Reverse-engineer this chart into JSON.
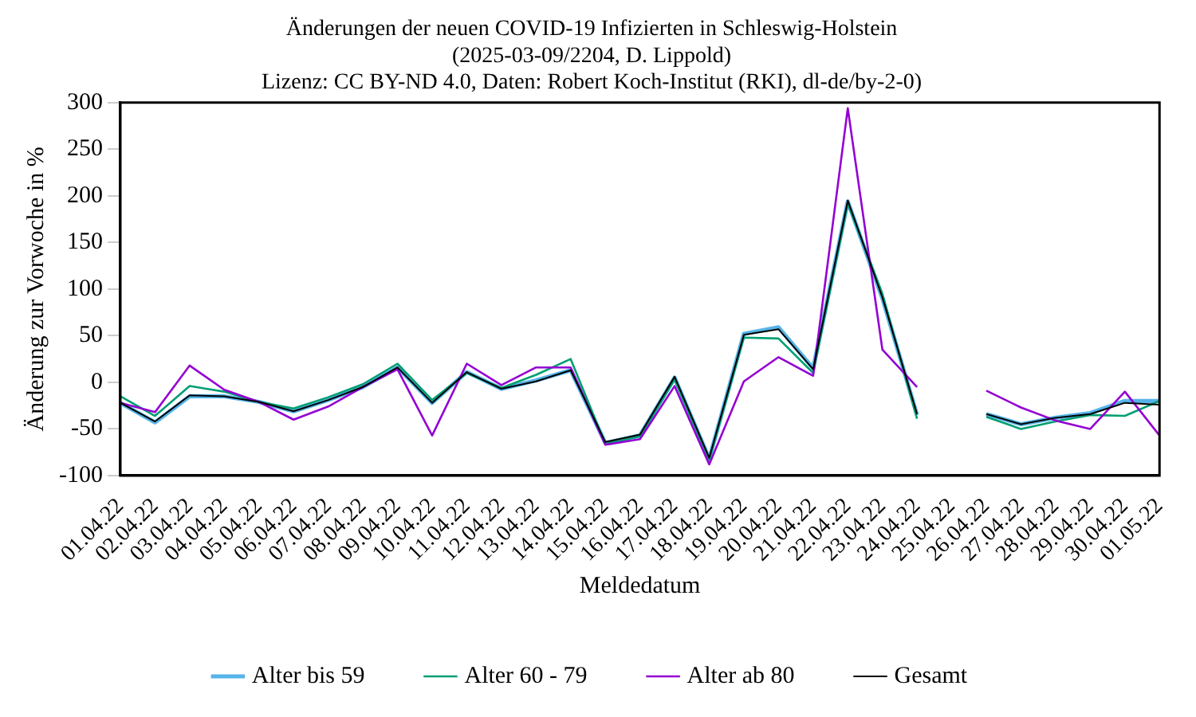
{
  "chart_data": {
    "type": "line",
    "title": [
      "Änderungen der neuen COVID-19 Infizierten in Schleswig-Holstein",
      "(2025-03-09/2204, D. Lippold)",
      "Lizenz: CC BY-ND 4.0, Daten: Robert Koch-Institut (RKI), dl-de/by-2-0)"
    ],
    "xlabel": "Meldedatum",
    "ylabel": "Änderung zur Vorwoche in %",
    "categories": [
      "01.04.22",
      "02.04.22",
      "03.04.22",
      "04.04.22",
      "05.04.22",
      "06.04.22",
      "07.04.22",
      "08.04.22",
      "09.04.22",
      "10.04.22",
      "11.04.22",
      "12.04.22",
      "13.04.22",
      "14.04.22",
      "15.04.22",
      "16.04.22",
      "17.04.22",
      "18.04.22",
      "19.04.22",
      "20.04.22",
      "21.04.22",
      "22.04.22",
      "23.04.22",
      "24.04.22",
      "25.04.22",
      "26.04.22",
      "27.04.22",
      "28.04.22",
      "29.04.22",
      "30.04.22",
      "01.05.22"
    ],
    "series": [
      {
        "name": "Alter bis 59",
        "color": "#56b4e9",
        "values": [
          -22,
          -43,
          -15,
          -15,
          -21,
          -31,
          -19,
          -5,
          16,
          -22,
          11,
          -7,
          2,
          13,
          -65,
          -57,
          5,
          -82,
          52,
          59,
          15,
          194,
          90,
          -35,
          null,
          -34,
          -45,
          -38,
          -33,
          -20,
          -20
        ]
      },
      {
        "name": "Alter 60 - 79",
        "color": "#009e73",
        "values": [
          -15,
          -36,
          -4,
          -10,
          -21,
          -28,
          -16,
          -2,
          20,
          -19,
          10,
          -6,
          8,
          25,
          -66,
          -58,
          3,
          -83,
          48,
          47,
          10,
          192,
          95,
          -39,
          null,
          -37,
          -50,
          -42,
          -35,
          -36,
          -20
        ]
      },
      {
        "name": "Alter ab 80",
        "color": "#9400d3",
        "values": [
          -22,
          -32,
          18,
          -8,
          -21,
          -40,
          -26,
          -5,
          14,
          -57,
          20,
          -3,
          16,
          16,
          -67,
          -61,
          -4,
          -88,
          1,
          27,
          7,
          294,
          35,
          -5,
          null,
          -9,
          -27,
          -41,
          -50,
          -10,
          -57
        ]
      },
      {
        "name": "Gesamt",
        "color": "#000000",
        "values": [
          -22,
          -42,
          -14,
          -15,
          -21,
          -31,
          -19,
          -5,
          16,
          -22,
          11,
          -7,
          1,
          13,
          -64,
          -56,
          6,
          -81,
          51,
          57,
          14,
          195,
          91,
          -34,
          null,
          -34,
          -45,
          -38,
          -34,
          -22,
          -24
        ]
      }
    ],
    "ylim": [
      -100,
      300
    ],
    "yticks": [
      -100,
      -50,
      0,
      50,
      100,
      150,
      200,
      250,
      300
    ],
    "grid": false,
    "legend": "bottom",
    "marker": "none",
    "line_style": "solid"
  }
}
